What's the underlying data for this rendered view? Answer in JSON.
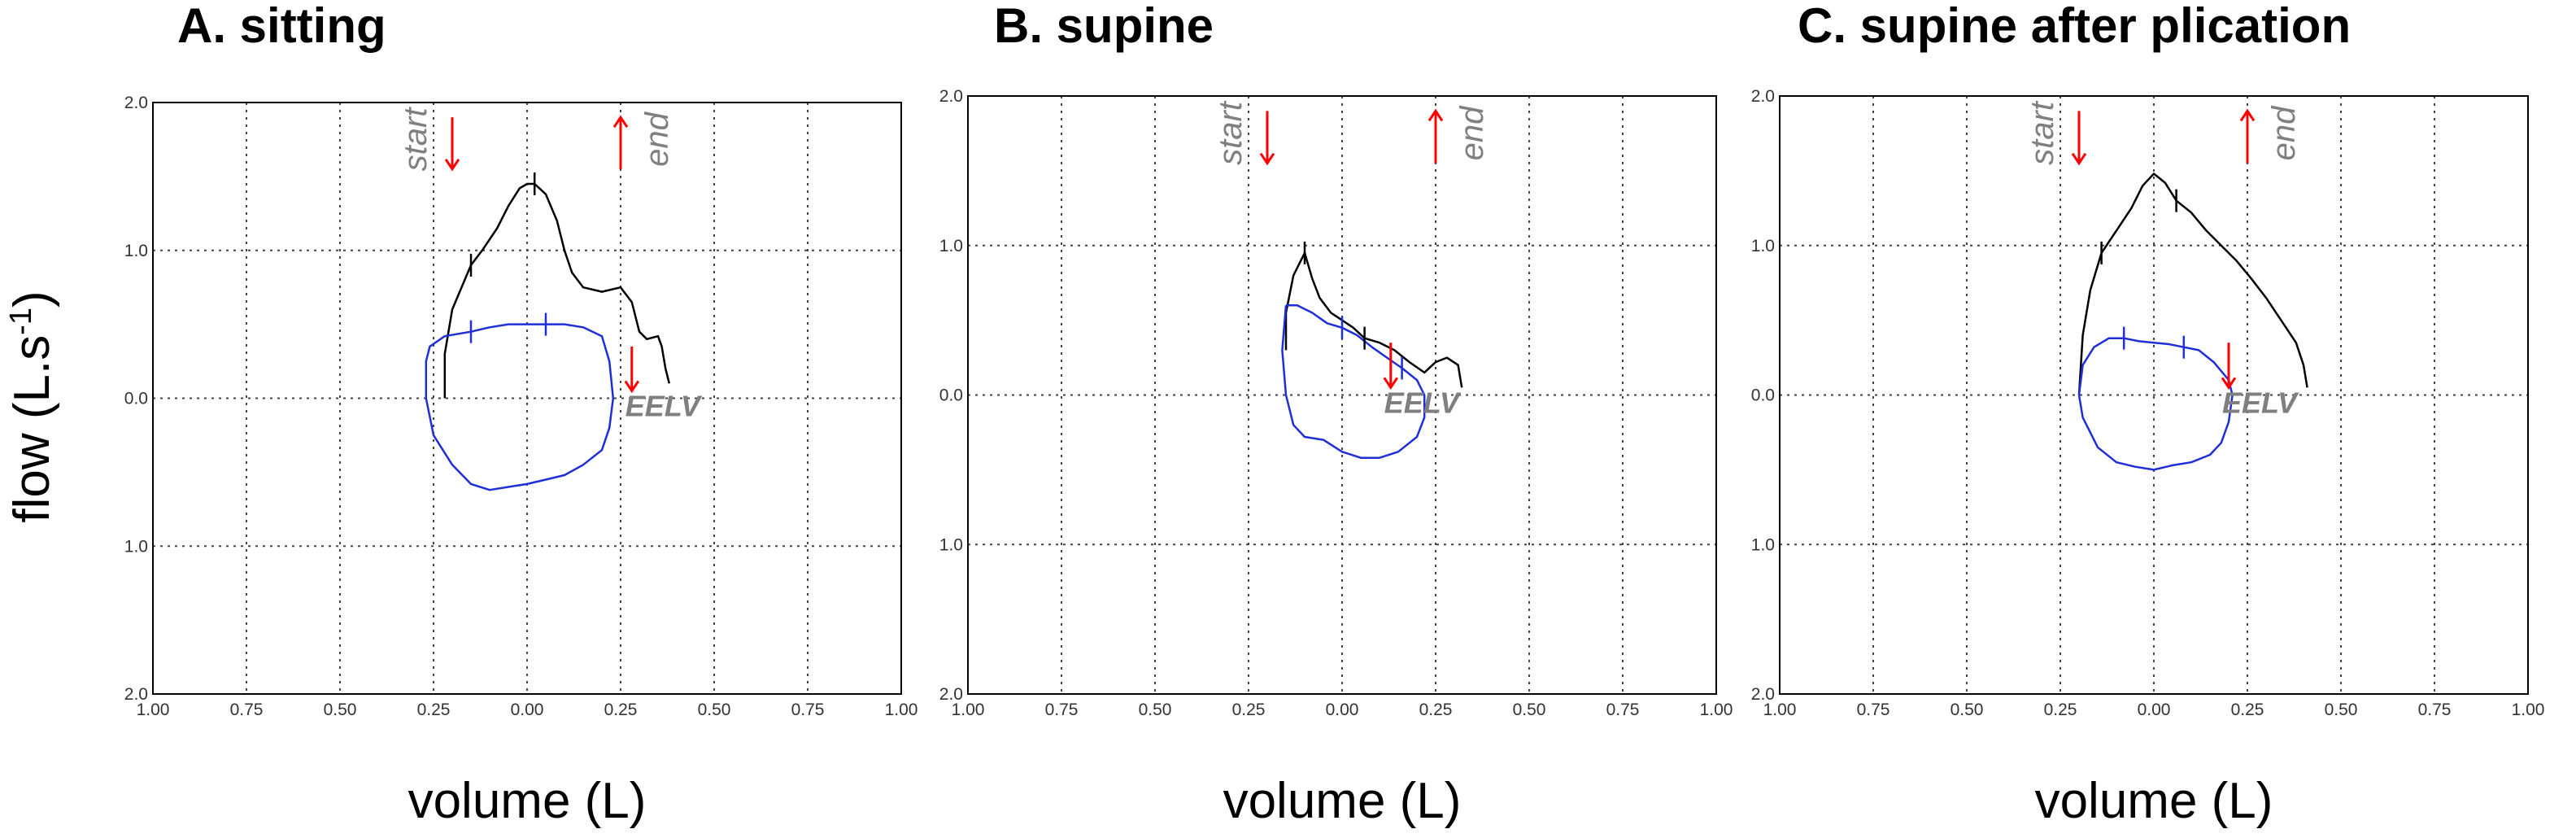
{
  "figure": {
    "ylabel": "flow (L.s",
    "ylabel_sup": "-1",
    "ylabel_close": ")"
  },
  "chart_data": [
    {
      "type": "line",
      "title": "A. sitting",
      "xlabel": "volume (L)",
      "xlim": [
        -1.0,
        1.0
      ],
      "ylim": [
        -2.0,
        2.0
      ],
      "x_tick_labels": [
        "1.00",
        "0.75",
        "0.50",
        "0.25",
        "0.00",
        "0.25",
        "0.50",
        "0.75",
        "1.00"
      ],
      "y_tick_labels": [
        "2.0",
        "1.0",
        "0.0",
        "1.0",
        "2.0"
      ],
      "grid": true,
      "annotations": {
        "start": "start",
        "end": "end",
        "eelv": "EELV"
      },
      "series": [
        {
          "role": "expiratory",
          "color": "#000000",
          "x": [
            -0.22,
            -0.22,
            -0.2,
            -0.15,
            -0.12,
            -0.08,
            -0.05,
            -0.02,
            0.0,
            0.02,
            0.05,
            0.08,
            0.1,
            0.12,
            0.15,
            0.2,
            0.25,
            0.28,
            0.3,
            0.32,
            0.35,
            0.36,
            0.37,
            0.38
          ],
          "y": [
            0.0,
            0.3,
            0.6,
            0.9,
            1.0,
            1.15,
            1.3,
            1.42,
            1.45,
            1.45,
            1.38,
            1.2,
            1.0,
            0.85,
            0.75,
            0.72,
            0.75,
            0.65,
            0.45,
            0.4,
            0.42,
            0.35,
            0.2,
            0.1
          ]
        },
        {
          "role": "tidal",
          "color": "#1f2fd6",
          "x": [
            -0.27,
            -0.27,
            -0.26,
            -0.22,
            -0.15,
            -0.1,
            -0.05,
            0.0,
            0.05,
            0.1,
            0.15,
            0.2,
            0.22,
            0.23,
            0.22,
            0.2,
            0.15,
            0.1,
            0.05,
            0.0,
            -0.05,
            -0.1,
            -0.15,
            -0.2,
            -0.25,
            -0.27
          ],
          "y": [
            0.0,
            0.25,
            0.35,
            0.42,
            0.45,
            0.48,
            0.5,
            0.5,
            0.5,
            0.5,
            0.48,
            0.42,
            0.25,
            0.0,
            -0.2,
            -0.35,
            -0.45,
            -0.52,
            -0.55,
            -0.58,
            -0.6,
            -0.62,
            -0.58,
            -0.45,
            -0.25,
            0.0
          ]
        }
      ]
    },
    {
      "type": "line",
      "title": "B. supine",
      "xlabel": "volume (L)",
      "xlim": [
        -1.0,
        1.0
      ],
      "ylim": [
        -2.0,
        2.0
      ],
      "x_tick_labels": [
        "1.00",
        "0.75",
        "0.50",
        "0.25",
        "0.00",
        "0.25",
        "0.50",
        "0.75",
        "1.00"
      ],
      "y_tick_labels": [
        "2.0",
        "1.0",
        "0.0",
        "1.0",
        "2.0"
      ],
      "grid": true,
      "annotations": {
        "start": "start",
        "end": "end",
        "eelv": "EELV"
      },
      "series": [
        {
          "role": "expiratory",
          "color": "#000000",
          "x": [
            -0.15,
            -0.15,
            -0.13,
            -0.1,
            -0.08,
            -0.06,
            -0.03,
            0.0,
            0.03,
            0.06,
            0.1,
            0.14,
            0.18,
            0.22,
            0.25,
            0.28,
            0.31,
            0.32
          ],
          "y": [
            0.3,
            0.55,
            0.8,
            0.95,
            0.78,
            0.65,
            0.55,
            0.5,
            0.45,
            0.38,
            0.35,
            0.3,
            0.22,
            0.15,
            0.22,
            0.25,
            0.2,
            0.05
          ]
        },
        {
          "role": "tidal",
          "color": "#1f2fd6",
          "x": [
            -0.15,
            -0.12,
            -0.08,
            -0.04,
            0.0,
            0.04,
            0.08,
            0.12,
            0.16,
            0.2,
            0.22,
            0.22,
            0.2,
            0.15,
            0.1,
            0.05,
            0.0,
            -0.05,
            -0.1,
            -0.13,
            -0.15,
            -0.16,
            -0.15
          ],
          "y": [
            0.6,
            0.6,
            0.55,
            0.48,
            0.45,
            0.4,
            0.32,
            0.25,
            0.18,
            0.1,
            0.0,
            -0.15,
            -0.28,
            -0.38,
            -0.42,
            -0.42,
            -0.38,
            -0.3,
            -0.28,
            -0.2,
            0.0,
            0.3,
            0.6
          ]
        }
      ]
    },
    {
      "type": "line",
      "title": "C. supine after plication",
      "xlabel": "volume (L)",
      "xlim": [
        -1.0,
        1.0
      ],
      "ylim": [
        -2.0,
        2.0
      ],
      "x_tick_labels": [
        "1.00",
        "0.75",
        "0.50",
        "0.25",
        "0.00",
        "0.25",
        "0.50",
        "0.75",
        "1.00"
      ],
      "y_tick_labels": [
        "2.0",
        "1.0",
        "0.0",
        "1.0",
        "2.0"
      ],
      "grid": true,
      "annotations": {
        "start": "start",
        "end": "end",
        "eelv": "EELV"
      },
      "series": [
        {
          "role": "expiratory",
          "color": "#000000",
          "x": [
            -0.2,
            -0.19,
            -0.17,
            -0.14,
            -0.1,
            -0.06,
            -0.03,
            0.0,
            0.03,
            0.06,
            0.1,
            0.14,
            0.18,
            0.22,
            0.26,
            0.3,
            0.34,
            0.38,
            0.4,
            0.41
          ],
          "y": [
            0.0,
            0.4,
            0.7,
            0.95,
            1.1,
            1.25,
            1.4,
            1.48,
            1.42,
            1.3,
            1.22,
            1.1,
            1.0,
            0.9,
            0.78,
            0.65,
            0.5,
            0.35,
            0.2,
            0.05
          ]
        },
        {
          "role": "tidal",
          "color": "#1f2fd6",
          "x": [
            -0.2,
            -0.19,
            -0.16,
            -0.12,
            -0.08,
            -0.04,
            0.0,
            0.04,
            0.08,
            0.12,
            0.16,
            0.2,
            0.21,
            0.2,
            0.18,
            0.15,
            0.1,
            0.05,
            0.0,
            -0.05,
            -0.1,
            -0.15,
            -0.19,
            -0.2
          ],
          "y": [
            0.0,
            0.2,
            0.32,
            0.38,
            0.38,
            0.36,
            0.35,
            0.34,
            0.32,
            0.3,
            0.22,
            0.1,
            0.0,
            -0.18,
            -0.32,
            -0.4,
            -0.45,
            -0.47,
            -0.5,
            -0.48,
            -0.45,
            -0.35,
            -0.15,
            0.0
          ]
        }
      ]
    }
  ]
}
